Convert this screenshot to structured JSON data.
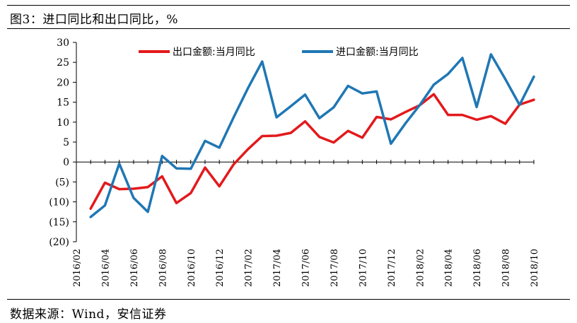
{
  "header": {
    "title": "图3：进口同比和出口同比，%"
  },
  "footer": {
    "source": "数据来源：Wind，安信证券"
  },
  "chart_data": {
    "type": "line",
    "title": "图3：进口同比和出口同比，%",
    "xlabel": "",
    "ylabel": "",
    "ylim": [
      -20,
      30
    ],
    "yticks": [
      30,
      25,
      20,
      15,
      10,
      5,
      0,
      -5,
      -10,
      -15,
      -20
    ],
    "ytick_labels": [
      "30",
      "25",
      "20",
      "15",
      "10",
      "5",
      "0",
      "(5)",
      "(10)",
      "(15)",
      "(20)"
    ],
    "xtick_labels": [
      "2016/02",
      "2016/04",
      "2016/06",
      "2016/08",
      "2016/10",
      "2016/12",
      "2017/02",
      "2017/04",
      "2017/06",
      "2017/08",
      "2017/10",
      "2017/12",
      "2018/02",
      "2018/04",
      "2018/06",
      "2018/08",
      "2018/10"
    ],
    "x": [
      "2016/03",
      "2016/04",
      "2016/05",
      "2016/06",
      "2016/07",
      "2016/08",
      "2016/09",
      "2016/10",
      "2016/11",
      "2016/12",
      "2017/01",
      "2017/02",
      "2017/03",
      "2017/04",
      "2017/05",
      "2017/06",
      "2017/07",
      "2017/08",
      "2017/09",
      "2017/10",
      "2017/11",
      "2017/12",
      "2018/01",
      "2018/02",
      "2018/03",
      "2018/04",
      "2018/05",
      "2018/06",
      "2018/07",
      "2018/08",
      "2018/09",
      "2018/10"
    ],
    "series": [
      {
        "name": "出口金额:当月同比",
        "color": "#e3191c",
        "values": [
          -11.7,
          -5.2,
          -6.8,
          -6.7,
          -6.3,
          -3.6,
          -10.3,
          -7.8,
          -1.4,
          -6.1,
          -0.6,
          3.2,
          6.5,
          6.6,
          7.3,
          10.2,
          6.3,
          4.9,
          7.8,
          6.1,
          11.3,
          10.7,
          12.5,
          14.2,
          17.0,
          11.8,
          11.8,
          10.6,
          11.5,
          9.6,
          14.4,
          15.6
        ]
      },
      {
        "name": "进口金额:当月同比",
        "color": "#1f77b4",
        "values": [
          -13.8,
          -10.9,
          -0.4,
          -9.0,
          -12.5,
          1.5,
          -1.6,
          -1.7,
          5.3,
          3.6,
          11.2,
          18.5,
          25.2,
          11.2,
          14.0,
          16.9,
          11.0,
          13.7,
          19.1,
          17.2,
          17.7,
          4.6,
          9.6,
          14.2,
          19.4,
          22.1,
          26.1,
          13.8,
          27.0,
          20.8,
          14.3,
          21.4
        ]
      }
    ],
    "legend": "top, inside"
  }
}
